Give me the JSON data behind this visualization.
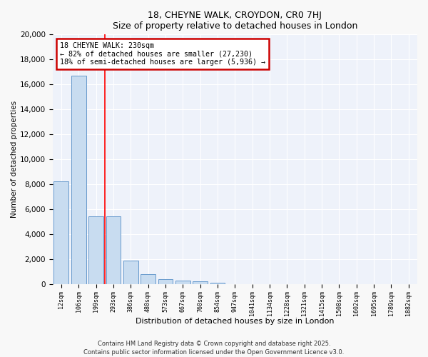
{
  "title1": "18, CHEYNE WALK, CROYDON, CR0 7HJ",
  "title2": "Size of property relative to detached houses in London",
  "xlabel": "Distribution of detached houses by size in London",
  "ylabel": "Number of detached properties",
  "categories": [
    "12sqm",
    "106sqm",
    "199sqm",
    "293sqm",
    "386sqm",
    "480sqm",
    "573sqm",
    "667sqm",
    "760sqm",
    "854sqm",
    "947sqm",
    "1041sqm",
    "1134sqm",
    "1228sqm",
    "1321sqm",
    "1415sqm",
    "1508sqm",
    "1602sqm",
    "1695sqm",
    "1789sqm",
    "1882sqm"
  ],
  "values": [
    8200,
    16700,
    5400,
    5400,
    1850,
    750,
    350,
    250,
    200,
    100,
    0,
    0,
    0,
    0,
    0,
    0,
    0,
    0,
    0,
    0,
    0
  ],
  "bar_color": "#c8dcf0",
  "bar_edge_color": "#6699cc",
  "red_line_x": 2.5,
  "annotation_line1": "18 CHEYNE WALK: 230sqm",
  "annotation_line2": "← 82% of detached houses are smaller (27,230)",
  "annotation_line3": "18% of semi-detached houses are larger (5,936) →",
  "annotation_box_color": "#ffffff",
  "annotation_box_edge_color": "#cc0000",
  "ylim": [
    0,
    20000
  ],
  "yticks": [
    0,
    2000,
    4000,
    6000,
    8000,
    10000,
    12000,
    14000,
    16000,
    18000,
    20000
  ],
  "bg_color": "#eef2fa",
  "grid_color": "#ffffff",
  "footer": "Contains HM Land Registry data © Crown copyright and database right 2025.\nContains public sector information licensed under the Open Government Licence v3.0."
}
